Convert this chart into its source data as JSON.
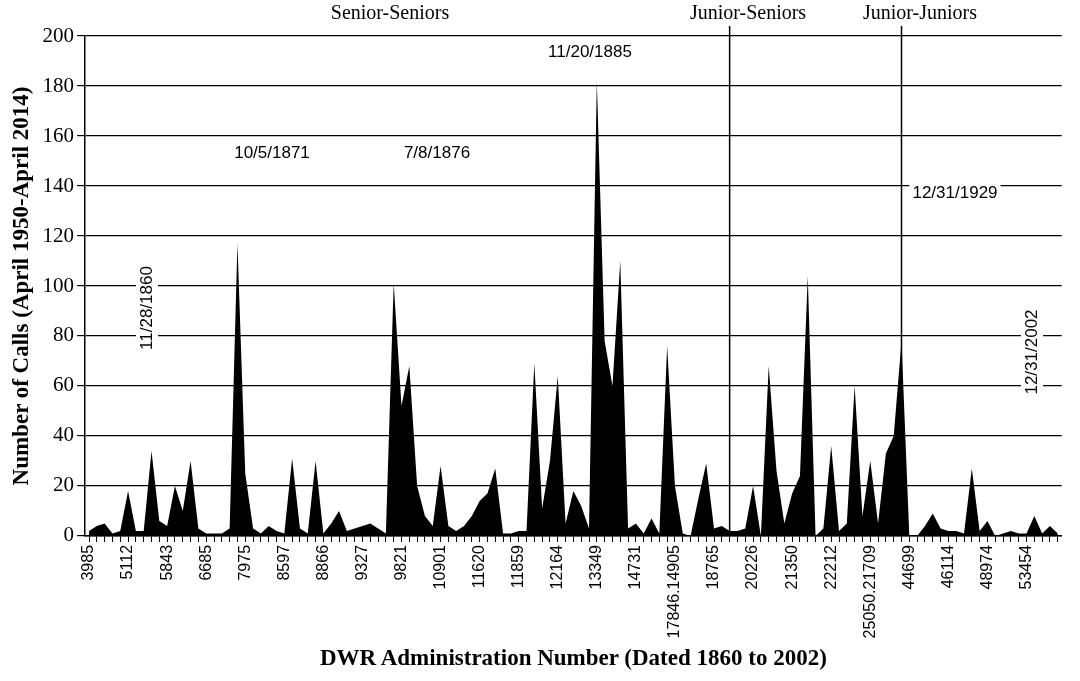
{
  "chart_data": {
    "type": "area",
    "xlabel": "DWR Administration Number (Dated 1860 to 2002)",
    "ylabel": "Number of Calls (April 1950-April 2014)",
    "categories": [
      "3985",
      null,
      null,
      null,
      null,
      "5112",
      null,
      null,
      null,
      null,
      "5843",
      null,
      null,
      null,
      null,
      "6685",
      null,
      null,
      null,
      null,
      "7975",
      null,
      null,
      null,
      null,
      "8597",
      null,
      null,
      null,
      null,
      "8866",
      null,
      null,
      null,
      null,
      "9327",
      null,
      null,
      null,
      null,
      "9821",
      null,
      null,
      null,
      null,
      "10901",
      null,
      null,
      null,
      null,
      "11620",
      null,
      null,
      null,
      null,
      "11859",
      null,
      null,
      null,
      null,
      "12164",
      null,
      null,
      null,
      null,
      "13349",
      null,
      null,
      null,
      null,
      "14731",
      null,
      null,
      null,
      null,
      "17846.14905",
      null,
      null,
      null,
      null,
      "18765",
      null,
      null,
      null,
      null,
      "20226",
      null,
      null,
      null,
      null,
      "21350",
      null,
      null,
      null,
      null,
      "22212",
      null,
      null,
      null,
      null,
      "25050.21709",
      null,
      null,
      null,
      null,
      "44699",
      null,
      null,
      null,
      null,
      "46114",
      null,
      null,
      null,
      null,
      "48974",
      null,
      null,
      null,
      null,
      "53454",
      null,
      null,
      null,
      null
    ],
    "series": [
      {
        "color": "#000000",
        "values": [
          2,
          4,
          5,
          1,
          2,
          18,
          2,
          2,
          34,
          6,
          4,
          20,
          10,
          30,
          3,
          1,
          1,
          1,
          3,
          117,
          25,
          3,
          1,
          4,
          2,
          1,
          31,
          3,
          1,
          30,
          1,
          5,
          10,
          2,
          3,
          4,
          5,
          3,
          1,
          101,
          52,
          68,
          20,
          8,
          4,
          28,
          4,
          2,
          4,
          8,
          14,
          17,
          27,
          1,
          1,
          2,
          2,
          69,
          11,
          30,
          64,
          5,
          18,
          12,
          3,
          182,
          78,
          60,
          110,
          3,
          5,
          1,
          7,
          1,
          76,
          20,
          1,
          0,
          15,
          29,
          3,
          4,
          2,
          2,
          3,
          20,
          0,
          68,
          26,
          5,
          17,
          24,
          104,
          0,
          3,
          36,
          2,
          5,
          60,
          8,
          30,
          5,
          33,
          40,
          78,
          0,
          0,
          4,
          9,
          3,
          2,
          2,
          1,
          27,
          2,
          6,
          0,
          1,
          2,
          1,
          1,
          8,
          1,
          4,
          1
        ]
      }
    ],
    "ylim": [
      0,
      200
    ],
    "yticks": [
      0,
      20,
      40,
      60,
      80,
      100,
      120,
      140,
      160,
      180,
      200
    ],
    "grid": "y",
    "annotations": [
      "Senior-Seniors",
      "11/28/1860",
      "10/5/1871",
      "7/8/1876",
      "11/20/1885",
      "12/31/1929",
      "12/31/2002",
      "Junior-Seniors",
      "Junior-Juniors"
    ]
  }
}
